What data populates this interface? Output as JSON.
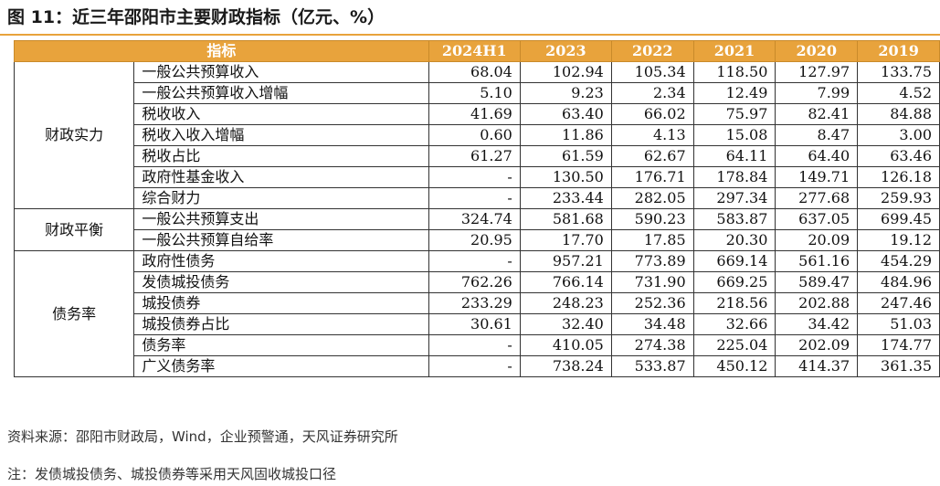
{
  "title": "图 11：近三年邵阳市主要财政指标（亿元、%）",
  "table": {
    "header": {
      "indicator": "指标",
      "years": [
        "2024H1",
        "2023",
        "2022",
        "2021",
        "2020",
        "2019"
      ]
    },
    "groups": [
      {
        "name": "财政实力",
        "rows": [
          {
            "label": "一般公共预算收入",
            "values": [
              "68.04",
              "102.94",
              "105.34",
              "118.50",
              "127.97",
              "133.75"
            ]
          },
          {
            "label": "一般公共预算收入增幅",
            "values": [
              "5.10",
              "9.23",
              "2.34",
              "12.49",
              "7.99",
              "4.52"
            ]
          },
          {
            "label": "税收收入",
            "values": [
              "41.69",
              "63.40",
              "66.02",
              "75.97",
              "82.41",
              "84.88"
            ]
          },
          {
            "label": "税收入收入增幅",
            "values": [
              "0.60",
              "11.86",
              "4.13",
              "15.08",
              "8.47",
              "3.00"
            ]
          },
          {
            "label": "税收占比",
            "values": [
              "61.27",
              "61.59",
              "62.67",
              "64.11",
              "64.40",
              "63.46"
            ]
          },
          {
            "label": "政府性基金收入",
            "values": [
              "-",
              "130.50",
              "176.71",
              "178.84",
              "149.71",
              "126.18"
            ]
          },
          {
            "label": "综合财力",
            "values": [
              "-",
              "233.44",
              "282.05",
              "297.34",
              "277.68",
              "259.93"
            ]
          }
        ]
      },
      {
        "name": "财政平衡",
        "rows": [
          {
            "label": "一般公共预算支出",
            "values": [
              "324.74",
              "581.68",
              "590.23",
              "583.87",
              "637.05",
              "699.45"
            ]
          },
          {
            "label": "一般公共预算自给率",
            "values": [
              "20.95",
              "17.70",
              "17.85",
              "20.30",
              "20.09",
              "19.12"
            ]
          }
        ]
      },
      {
        "name": "债务率",
        "rows": [
          {
            "label": "政府性债务",
            "values": [
              "-",
              "957.21",
              "773.89",
              "669.14",
              "561.16",
              "454.29"
            ]
          },
          {
            "label": "发债城投债务",
            "values": [
              "762.26",
              "766.14",
              "731.90",
              "669.25",
              "589.47",
              "484.96"
            ]
          },
          {
            "label": "城投债券",
            "values": [
              "233.29",
              "248.23",
              "252.36",
              "218.56",
              "202.88",
              "247.46"
            ]
          },
          {
            "label": "城投债券占比",
            "values": [
              "30.61",
              "32.40",
              "34.48",
              "32.66",
              "34.42",
              "51.03"
            ]
          },
          {
            "label": "债务率",
            "values": [
              "-",
              "410.05",
              "274.38",
              "225.04",
              "202.09",
              "174.77"
            ]
          },
          {
            "label": "广义债务率",
            "values": [
              "-",
              "738.24",
              "533.87",
              "450.12",
              "414.37",
              "361.35"
            ]
          }
        ]
      }
    ]
  },
  "source": "资料来源：邵阳市财政局，Wind，企业预警通，天风证券研究所",
  "footnote": "注：发债城投债务、城投债券等采用天风固收城投口径",
  "colors": {
    "accent": "#E8A33C",
    "border": "#333333"
  }
}
